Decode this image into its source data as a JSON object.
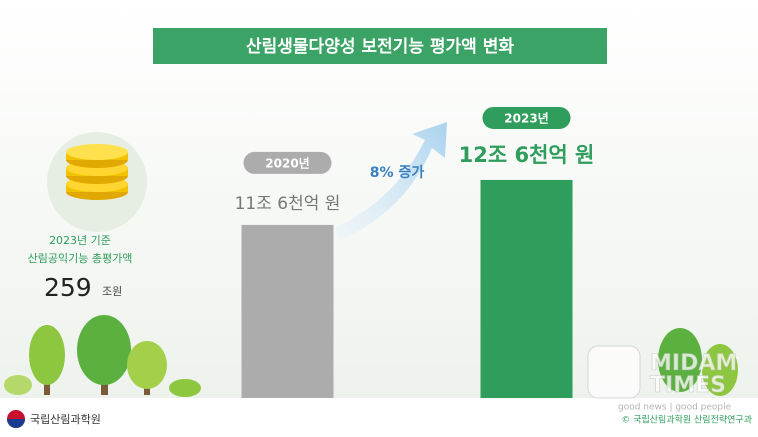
{
  "chart_data": {
    "type": "bar",
    "title": "산림생물다양성 보전기능 평가액 변화",
    "categories": [
      "2020년",
      "2023년"
    ],
    "values": [
      11.6,
      12.6
    ],
    "value_labels": [
      "11조 6천억 원",
      "12조 6천억 원"
    ],
    "colors": [
      "#acacac",
      "#2f9d5c"
    ],
    "ylim": [
      7.75,
      13.5
    ],
    "annotation": "8% 증가",
    "side_panel": {
      "line1": "2023년 기준",
      "line2": "산림공익기능 총평가액",
      "amount": "259",
      "unit": "조원"
    },
    "footer": {
      "org": "국립산림과학원",
      "credit": "© 국립산림과학원 산림전략연구과"
    },
    "watermark": {
      "line1": "MIDAM",
      "line2": "TIMES",
      "tagline": "good news | good people"
    }
  }
}
